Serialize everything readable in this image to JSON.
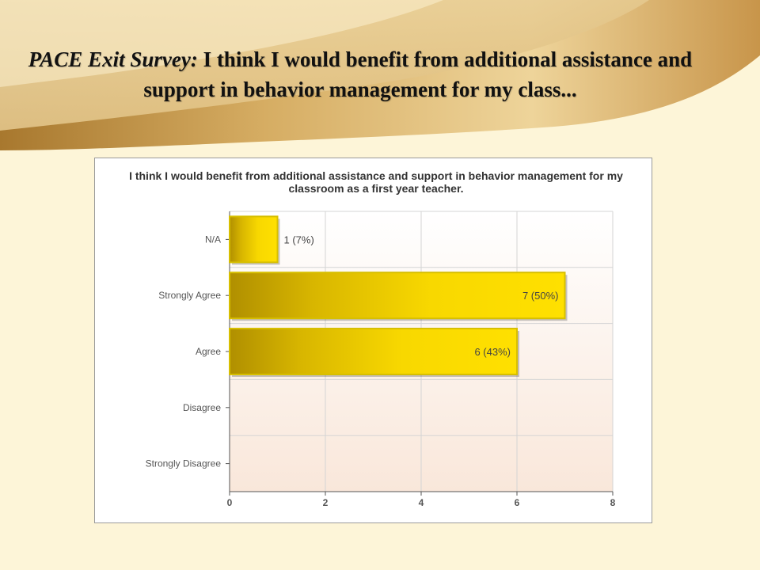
{
  "slide": {
    "title_lead": "PACE Exit Survey:",
    "title_rest": "I think I would benefit from additional assistance and support in behavior management for my class..."
  },
  "colors": {
    "background": "#fdf5d8",
    "swoosh": "#c79a4a",
    "bar_light": "#ffe000",
    "bar_dark": "#b08f00",
    "plot_top": "#ffffff",
    "plot_bottom": "#f9e7da"
  },
  "chart_data": {
    "type": "bar",
    "orientation": "horizontal",
    "title": "I think I would benefit from additional assistance and support in behavior management for my classroom as a first year teacher.",
    "categories": [
      "N/A",
      "Strongly Agree",
      "Agree",
      "Disagree",
      "Strongly Disagree"
    ],
    "values": [
      1,
      7,
      6,
      0,
      0
    ],
    "data_labels": [
      "1 (7%)",
      "7 (50%)",
      "6 (43%)",
      "",
      ""
    ],
    "xlim": [
      0,
      8
    ],
    "xticks": [
      0,
      2,
      4,
      6,
      8
    ],
    "xlabel": "",
    "ylabel": "",
    "grid": true,
    "legend": "none"
  }
}
